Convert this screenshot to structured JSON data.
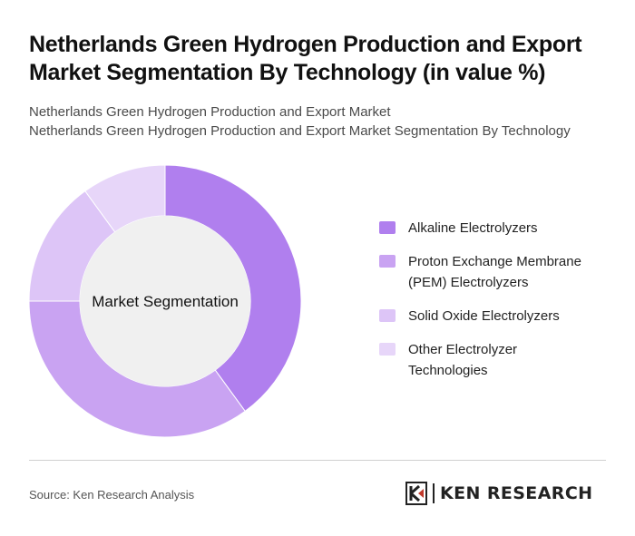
{
  "title": "Netherlands Green Hydrogen Production and Export Market Segmentation By Technology (in value %)",
  "subtitle_line1": "Netherlands Green Hydrogen Production and Export Market",
  "subtitle_line2": "Netherlands Green Hydrogen Production and Export Market Segmentation By Technology",
  "center_label": "Market Segmentation",
  "source": "Source: Ken Research Analysis",
  "brand": "KEN RESEARCH",
  "chart_data": {
    "type": "pie",
    "donut": true,
    "title": "Netherlands Green Hydrogen Production and Export Market Segmentation By Technology (in value %)",
    "categories": [
      "Alkaline Electrolyzers",
      "Proton Exchange Membrane (PEM) Electrolyzers",
      "Solid Oxide Electrolyzers",
      "Other Electrolyzer Technologies"
    ],
    "values": [
      40,
      35,
      15,
      10
    ],
    "colors": [
      "#b07fee",
      "#c9a3f2",
      "#ddc5f7",
      "#e7d6f9"
    ],
    "legend_position": "right"
  }
}
